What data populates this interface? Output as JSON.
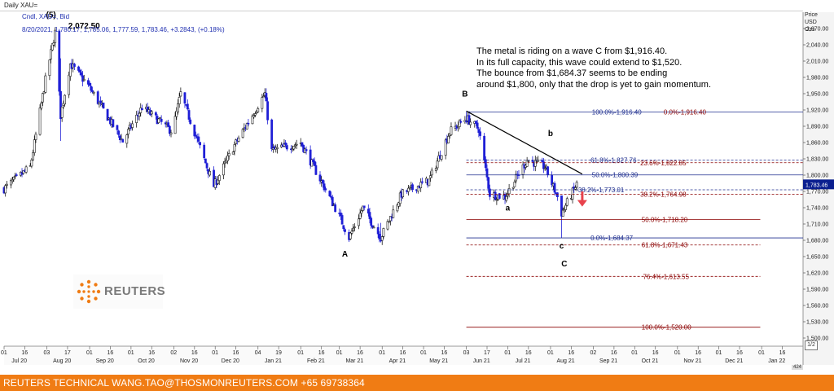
{
  "header": {
    "chart_name": "Daily XAU=",
    "instrument": "Cndl, XAU=, Bid",
    "quote": "8/20/2021, 1,780.17, 1,785.06, 1,777.59, 1,783.46, +3.2843, (+0.18%)"
  },
  "axis_title": [
    "Price",
    "USD",
    "Ozs"
  ],
  "commentary": [
    "The metal is riding on a wave C from $1,916.40.",
    "In its full capacity, this wave could extend to $1,520.",
    "The bounce from $1,684.37 seems to be ending",
    "around $1,800, only that the drop is yet to gain momentum."
  ],
  "logo_text": "REUTERS",
  "footer_text": "REUTERS TECHNICAL  WANG.TAO@THOSMONREUTERS.COM  +65 69738364",
  "zoom_label": "1/2",
  "scroll_label": "424",
  "colors": {
    "candle_up": "#1a1a1a",
    "candle_down": "#1f1fd6",
    "fib_blue": "#1f2f8f",
    "fib_red": "#8b0000",
    "price_tag": "#0b1f8f",
    "arrow": "#e8424c",
    "footer": "#f07c14"
  },
  "chart_data": {
    "type": "candlestick",
    "ylim": [
      1485,
      2100
    ],
    "yticks": [
      1500,
      1530,
      1560,
      1590,
      1620,
      1650,
      1680,
      1710,
      1740,
      1770,
      1800,
      1830,
      1860,
      1890,
      1920,
      1950,
      1980,
      2010,
      2040,
      2070
    ],
    "ytick_labels": [
      "1,500.00",
      "1,530.00",
      "1,560.00",
      "1,590.00",
      "1,620.00",
      "1,650.00",
      "1,680.00",
      "1,710.00",
      "1,740.00",
      "1,770.00",
      "1,800.00",
      "1,830.00",
      "1,860.00",
      "1,890.00",
      "1,920.00",
      "1,950.00",
      "1,980.00",
      "2,010.00",
      "2,040.00",
      "2,070.00"
    ],
    "last_price_label": "1,783.46",
    "x_start": "2020-07-01",
    "x_end": "2022-01-31",
    "day_ticks": [
      "01",
      "16",
      "03",
      "17",
      "01",
      "16",
      "01",
      "16",
      "02",
      "16",
      "01",
      "16",
      "04",
      "19",
      "01",
      "16",
      "01",
      "16",
      "01",
      "16",
      "01",
      "16",
      "03",
      "17",
      "01",
      "16",
      "01",
      "16",
      "02",
      "16",
      "01",
      "16",
      "01",
      "16",
      "01",
      "16",
      "01",
      "16",
      "01",
      "16"
    ],
    "month_labels": [
      "Jul 20",
      "Aug 20",
      "Sep 20",
      "Oct 20",
      "Nov 20",
      "Dec 20",
      "Jan 21",
      "Feb 21",
      "Mar 21",
      "Apr 21",
      "May 21",
      "Jun 21",
      "Jul 21",
      "Aug 21",
      "Sep 21",
      "Oct 21",
      "Nov 21",
      "Dec 21",
      "Jan 22"
    ],
    "keypoints": [
      {
        "date": "2020-07-01",
        "price": 1775
      },
      {
        "date": "2020-07-20",
        "price": 1815
      },
      {
        "date": "2020-07-31",
        "price": 1975
      },
      {
        "date": "2020-08-07",
        "price": 2063
      },
      {
        "date": "2020-08-11",
        "price": 1910
      },
      {
        "date": "2020-08-18",
        "price": 2005
      },
      {
        "date": "2020-08-31",
        "price": 1965
      },
      {
        "date": "2020-09-25",
        "price": 1862
      },
      {
        "date": "2020-10-09",
        "price": 1925
      },
      {
        "date": "2020-10-31",
        "price": 1880
      },
      {
        "date": "2020-11-06",
        "price": 1950
      },
      {
        "date": "2020-11-30",
        "price": 1780
      },
      {
        "date": "2020-12-15",
        "price": 1855
      },
      {
        "date": "2021-01-06",
        "price": 1950
      },
      {
        "date": "2021-01-11",
        "price": 1845
      },
      {
        "date": "2021-02-01",
        "price": 1860
      },
      {
        "date": "2021-02-28",
        "price": 1730
      },
      {
        "date": "2021-03-08",
        "price": 1685
      },
      {
        "date": "2021-03-18",
        "price": 1740
      },
      {
        "date": "2021-03-31",
        "price": 1685
      },
      {
        "date": "2021-04-15",
        "price": 1765
      },
      {
        "date": "2021-05-05",
        "price": 1790
      },
      {
        "date": "2021-05-20",
        "price": 1880
      },
      {
        "date": "2021-06-01",
        "price": 1905
      },
      {
        "date": "2021-06-10",
        "price": 1885
      },
      {
        "date": "2021-06-18",
        "price": 1765
      },
      {
        "date": "2021-06-29",
        "price": 1760
      },
      {
        "date": "2021-07-15",
        "price": 1828
      },
      {
        "date": "2021-07-28",
        "price": 1815
      },
      {
        "date": "2021-08-06",
        "price": 1760
      },
      {
        "date": "2021-08-09",
        "price": 1730
      },
      {
        "date": "2021-08-20",
        "price": 1783
      }
    ],
    "wicks": [
      {
        "date": "2020-08-07",
        "high": 2072.5,
        "low": 2035
      },
      {
        "date": "2020-08-11",
        "high": 2015,
        "low": 1863
      },
      {
        "date": "2021-03-08",
        "high": 1700,
        "low": 1677
      },
      {
        "date": "2021-03-31",
        "high": 1712,
        "low": 1676
      },
      {
        "date": "2021-06-01",
        "high": 1916.4,
        "low": 1895
      },
      {
        "date": "2021-08-09",
        "high": 1762,
        "low": 1684.37
      }
    ],
    "wave_labels": [
      {
        "text": "(5)",
        "date": "2020-08-04",
        "price": 2090
      },
      {
        "text": "2,072.50",
        "date": "2020-08-28",
        "price": 2070
      },
      {
        "text": "A",
        "date": "2021-03-05",
        "price": 1650
      },
      {
        "text": "B",
        "date": "2021-05-31",
        "price": 1945
      },
      {
        "text": "b",
        "date": "2021-08-01",
        "price": 1872
      },
      {
        "text": "a",
        "date": "2021-07-01",
        "price": 1735
      },
      {
        "text": "c",
        "date": "2021-08-09",
        "price": 1665
      },
      {
        "text": "C",
        "date": "2021-08-11",
        "price": 1632
      }
    ],
    "trendline": {
      "start": {
        "date": "2021-06-01",
        "price": 1918
      },
      "end": {
        "date": "2021-08-24",
        "price": 1802
      }
    },
    "fib_levels": [
      {
        "label": "100.0%",
        "value": "1,916.40",
        "price": 1916.4,
        "group": "blue",
        "style": "solid",
        "x1": "2021-06-01",
        "x2": "2022-02-01",
        "label_date": "2021-08-31"
      },
      {
        "label": "0.0%",
        "value": "1,916.40",
        "price": 1916.4,
        "group": "red",
        "style": "none",
        "x1": "2021-06-01",
        "x2": "2022-02-01",
        "label_date": "2021-10-22"
      },
      {
        "label": "61.8%",
        "value": "1,827.76",
        "price": 1827.76,
        "group": "blue",
        "style": "dash",
        "x1": "2021-06-01",
        "x2": "2022-02-01",
        "label_date": "2021-08-30"
      },
      {
        "label": "23.6%",
        "value": "1,822.85",
        "price": 1822.85,
        "group": "red",
        "style": "dash",
        "x1": "2021-06-01",
        "x2": "2022-02-01",
        "label_date": "2021-10-05"
      },
      {
        "label": "50.0%",
        "value": "1,800.39",
        "price": 1800.39,
        "group": "blue",
        "style": "solid",
        "x1": "2021-06-01",
        "x2": "2022-02-01",
        "label_date": "2021-08-31"
      },
      {
        "label": "38.2%",
        "value": "1,773.01",
        "price": 1773.01,
        "group": "blue",
        "style": "dash",
        "x1": "2021-06-01",
        "x2": "2022-02-01",
        "label_date": "2021-08-21"
      },
      {
        "label": "38.2%",
        "value": "1,764.98",
        "price": 1764.98,
        "group": "red",
        "style": "dash",
        "x1": "2021-06-01",
        "x2": "2022-02-01",
        "label_date": "2021-10-05"
      },
      {
        "label": "50.0%",
        "value": "1,718.20",
        "price": 1718.2,
        "group": "red",
        "style": "solid",
        "x1": "2021-06-01",
        "x2": "2021-12-31",
        "label_date": "2021-10-06"
      },
      {
        "label": "0.0%",
        "value": "1,684.37",
        "price": 1684.37,
        "group": "blue",
        "style": "solid",
        "x1": "2021-06-01",
        "x2": "2022-02-01",
        "label_date": "2021-08-30"
      },
      {
        "label": "61.8%",
        "value": "1,671.43",
        "price": 1671.43,
        "group": "red",
        "style": "dash",
        "x1": "2021-06-01",
        "x2": "2021-12-31",
        "label_date": "2021-10-06"
      },
      {
        "label": "76.4%",
        "value": "1,613.55",
        "price": 1613.55,
        "group": "red",
        "style": "dash",
        "x1": "2021-06-01",
        "x2": "2021-12-31",
        "label_date": "2021-10-07"
      },
      {
        "label": "100.0%",
        "value": "1,520.00",
        "price": 1520,
        "group": "red",
        "style": "solid",
        "x1": "2021-06-01",
        "x2": "2021-12-31",
        "label_date": "2021-10-06"
      }
    ],
    "arrow": {
      "date": "2021-08-24",
      "from": 1770,
      "to": 1745
    }
  }
}
